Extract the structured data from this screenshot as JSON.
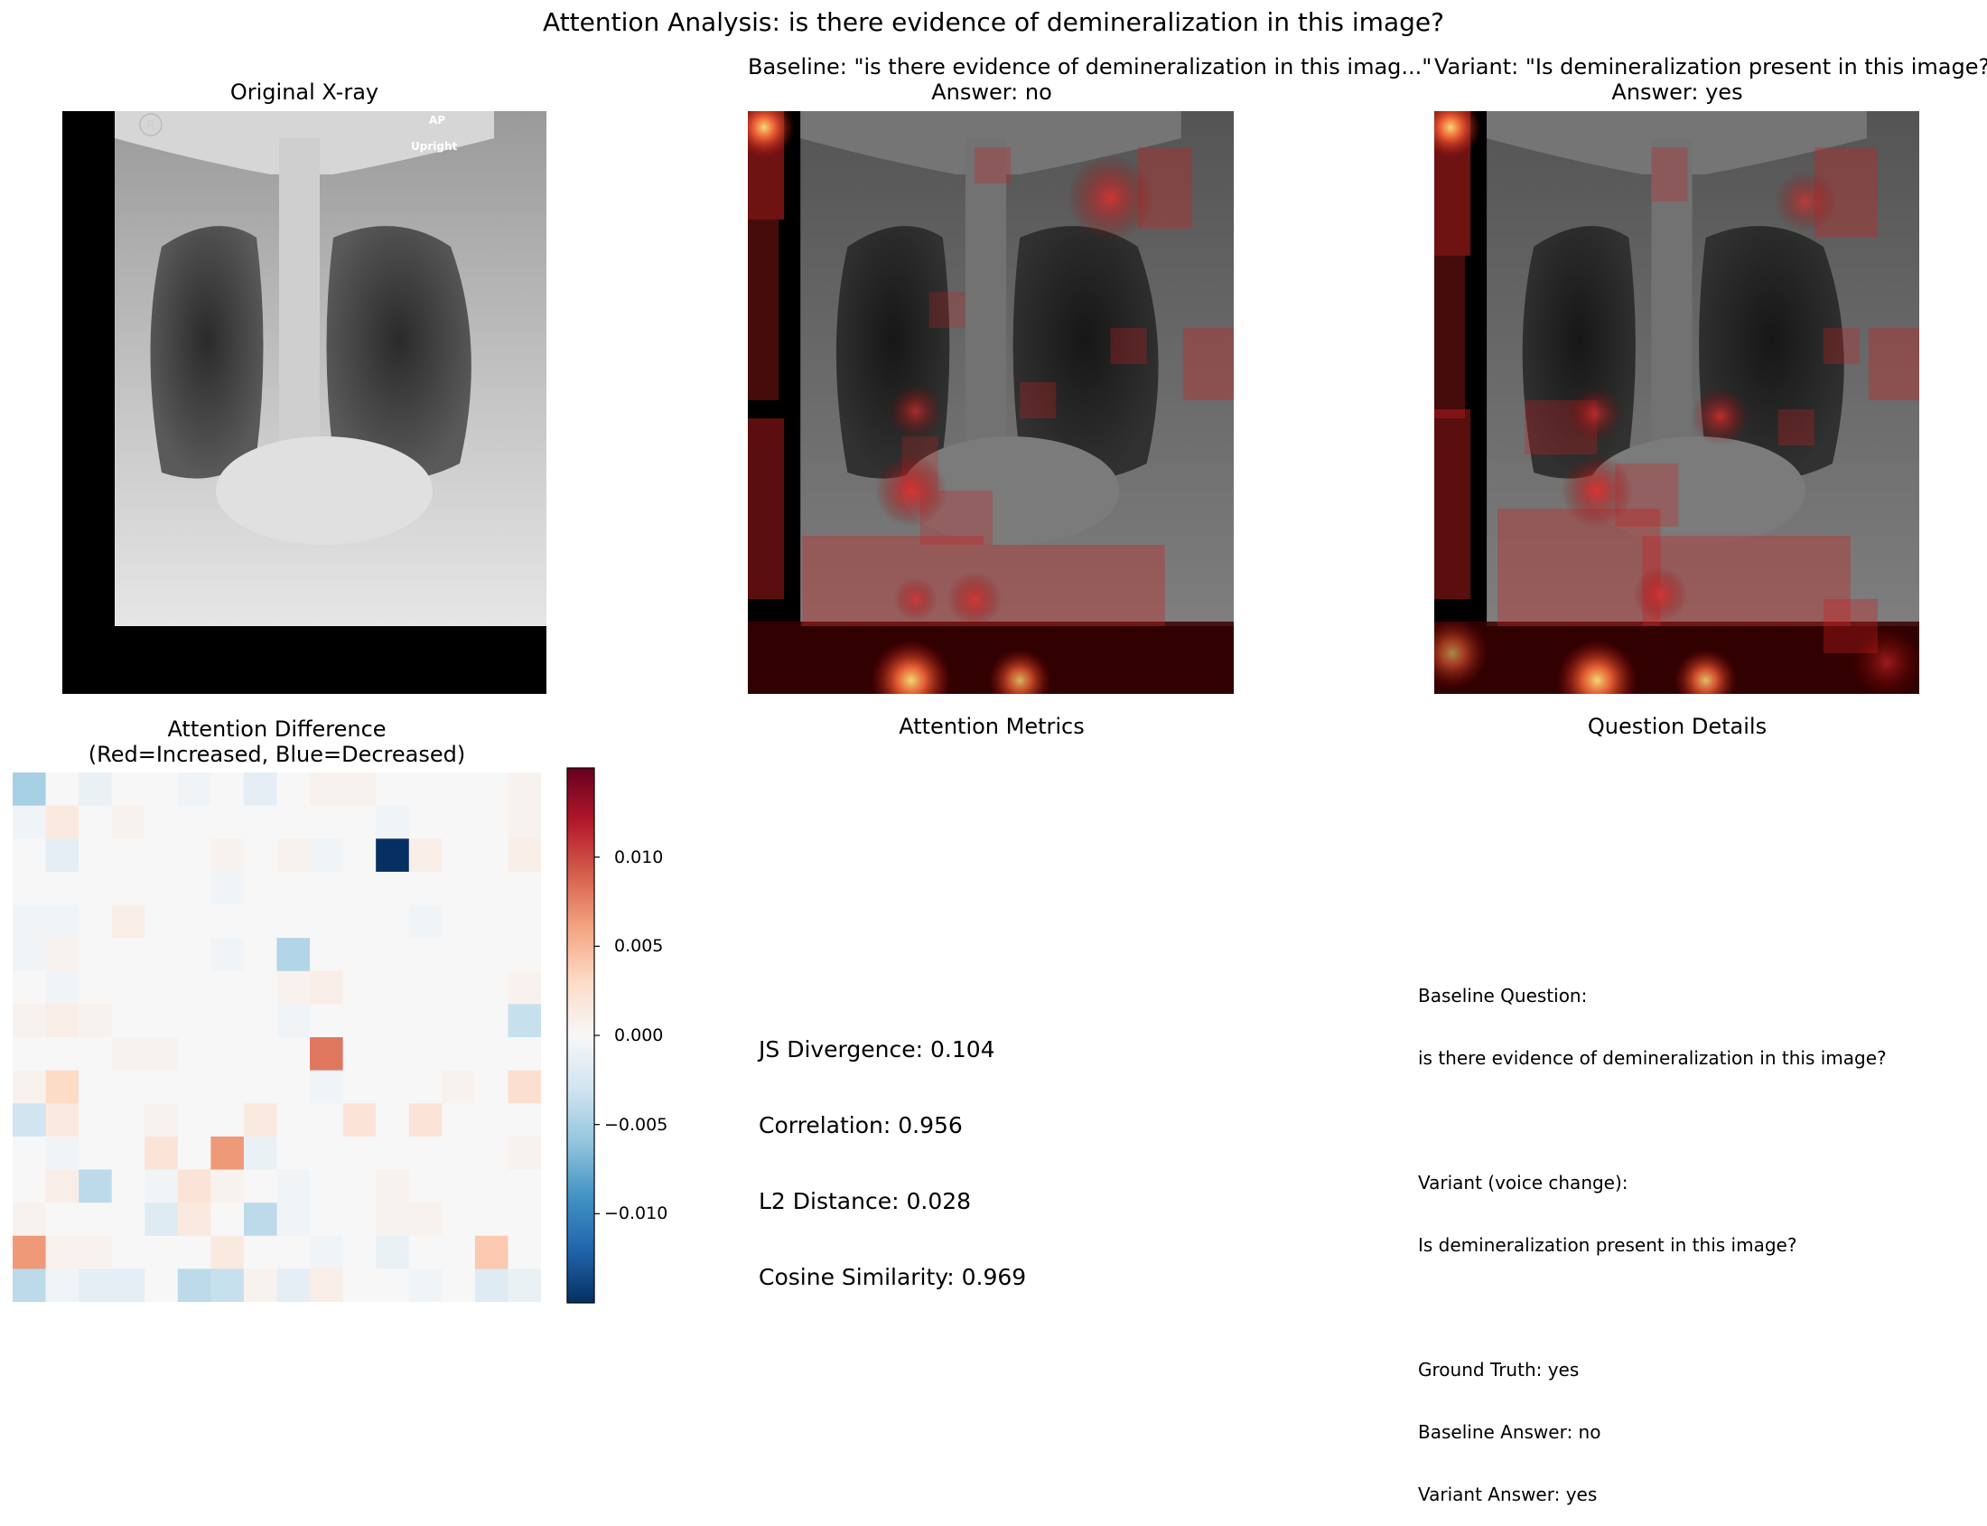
{
  "figure": {
    "title": "Attention Analysis: is there evidence of demineralization in this image?"
  },
  "panels": {
    "original": {
      "title": "Original X-ray",
      "marker_r": "R",
      "label_ap": "AP",
      "label_upright": "Upright"
    },
    "baseline": {
      "title_line1": "Baseline: \"is there evidence of demineralization in this imag...\"",
      "title_line2": "Answer: no"
    },
    "variant": {
      "title_line1": "Variant: \"Is demineralization present in this image?...\"",
      "title_line2": "Answer: yes"
    },
    "difference": {
      "title_line1": "Attention Difference",
      "title_line2": "(Red=Increased, Blue=Decreased)"
    },
    "metrics": {
      "title": "Attention Metrics",
      "lines": [
        "JS Divergence: 0.104",
        "Correlation: 0.956",
        "L2 Distance: 0.028",
        "Cosine Similarity: 0.969"
      ]
    },
    "details": {
      "title": "Question Details",
      "lines": [
        "Baseline Question:",
        "is there evidence of demineralization in this image?",
        "",
        "Variant (voice change):",
        "Is demineralization present in this image?",
        "",
        "Ground Truth: yes",
        "Baseline Answer: no",
        "Variant Answer: yes"
      ]
    }
  },
  "chart_data": [
    {
      "type": "heatmap",
      "title": "Attention Difference\n(Red=Increased, Blue=Decreased)",
      "colormap": "RdBu_r",
      "clim": [
        -0.015,
        0.015
      ],
      "colorbar_ticks": [
        {
          "value": 0.01,
          "label": "0.010"
        },
        {
          "value": 0.005,
          "label": "0.005"
        },
        {
          "value": 0.0,
          "label": "0.000"
        },
        {
          "value": -0.005,
          "label": "−0.005"
        },
        {
          "value": -0.01,
          "label": "−0.010"
        }
      ],
      "rows": 16,
      "cols": 16,
      "values": [
        [
          -0.005,
          0.0,
          -0.001,
          0.0,
          0.0,
          -0.0005,
          0.0,
          -0.0015,
          0.0,
          0.0005,
          0.0005,
          0.0,
          0.0,
          0.0,
          0.0,
          0.0005
        ],
        [
          -0.0005,
          0.0015,
          0.0,
          0.0005,
          0.0,
          0.0,
          0.0,
          0.0,
          0.0,
          0.0,
          0.0,
          -0.0005,
          0.0,
          0.0,
          0.0,
          0.0005
        ],
        [
          0.0,
          -0.0015,
          0.0,
          0.0,
          0.0,
          0.0,
          0.0005,
          0.0,
          0.0005,
          -0.0005,
          0.0,
          -0.015,
          0.001,
          0.0,
          0.0,
          0.001
        ],
        [
          0.0,
          0.0,
          0.0,
          0.0,
          0.0,
          0.0,
          -0.0005,
          0.0,
          0.0,
          0.0,
          0.0,
          0.0,
          0.0,
          0.0,
          0.0,
          0.0
        ],
        [
          -0.0005,
          -0.0005,
          0.0,
          0.001,
          0.0,
          0.0,
          0.0,
          0.0,
          0.0,
          0.0,
          0.0,
          0.0,
          -0.0005,
          0.0,
          0.0,
          0.0
        ],
        [
          -0.0005,
          0.0005,
          0.0,
          0.0,
          0.0,
          0.0,
          -0.0005,
          0.0,
          -0.0045,
          0.0,
          0.0,
          0.0,
          0.0,
          0.0,
          0.0,
          0.0
        ],
        [
          0.0,
          -0.0005,
          0.0,
          0.0,
          0.0,
          0.0,
          0.0,
          0.0,
          0.0005,
          0.001,
          0.0,
          0.0,
          0.0,
          0.0,
          0.0,
          0.0005
        ],
        [
          0.0005,
          0.001,
          0.0005,
          0.0,
          0.0,
          0.0,
          0.0,
          0.0,
          -0.0005,
          0.0,
          0.0,
          0.0,
          0.0,
          0.0,
          0.0,
          -0.0035
        ],
        [
          0.0,
          0.0,
          0.0,
          0.0005,
          0.0005,
          0.0,
          0.0,
          0.0,
          0.0,
          0.008,
          0.0,
          0.0,
          0.0,
          0.0,
          0.0,
          0.0
        ],
        [
          0.0005,
          0.003,
          0.0,
          0.0,
          0.0,
          0.0,
          0.0,
          0.0,
          0.0,
          -0.0005,
          0.0,
          0.0,
          0.0,
          0.0005,
          0.0,
          0.0025
        ],
        [
          -0.003,
          0.0015,
          0.0,
          0.0,
          0.0005,
          0.0,
          0.0,
          0.0015,
          0.0,
          0.0,
          0.002,
          0.0,
          0.002,
          0.0,
          0.0,
          0.0
        ],
        [
          0.0,
          -0.0005,
          0.0,
          0.0,
          0.002,
          0.0,
          0.0065,
          -0.001,
          0.0,
          0.0,
          0.0,
          0.0,
          0.0,
          0.0,
          0.0,
          0.0005
        ],
        [
          0.0,
          0.001,
          -0.004,
          0.0,
          -0.0005,
          0.002,
          0.0005,
          0.0,
          -0.0005,
          0.0,
          0.0,
          0.0005,
          0.0,
          0.0,
          0.0,
          0.0
        ],
        [
          0.0005,
          0.0,
          0.0,
          0.0,
          -0.002,
          0.0015,
          0.0,
          -0.004,
          -0.0005,
          0.0,
          0.0,
          0.0005,
          0.0005,
          0.0,
          0.0,
          0.0
        ],
        [
          0.0065,
          0.0005,
          0.0005,
          0.0,
          0.0,
          0.0,
          0.0015,
          0.0,
          0.0,
          -0.0005,
          0.0,
          -0.001,
          0.0,
          0.0,
          0.004,
          0.0
        ],
        [
          -0.004,
          -0.0005,
          -0.0015,
          -0.0015,
          0.0,
          -0.004,
          -0.0035,
          0.0005,
          -0.0015,
          0.001,
          0.0,
          0.0,
          -0.0005,
          0.0,
          -0.002,
          -0.001
        ]
      ]
    }
  ]
}
